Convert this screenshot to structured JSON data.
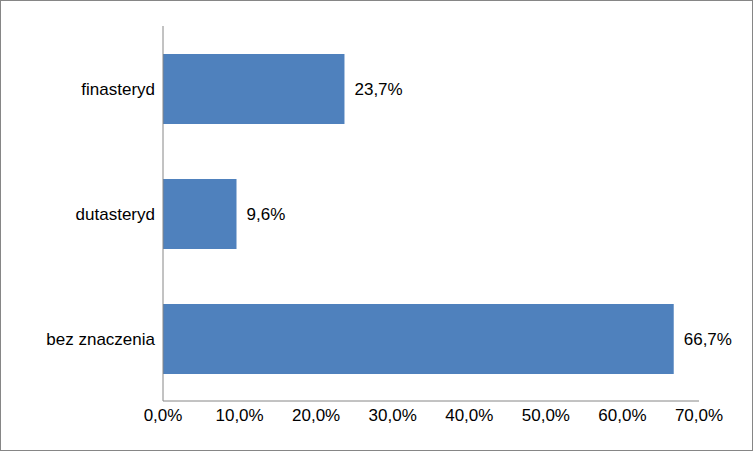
{
  "chart_data": {
    "type": "bar",
    "orientation": "horizontal",
    "categories": [
      "finasteryd",
      "dutasteryd",
      "bez znaczenia"
    ],
    "values": [
      23.7,
      9.6,
      66.7
    ],
    "value_labels": [
      "23,7%",
      "9,6%",
      "66,7%"
    ],
    "data_labels": true,
    "color": "#4f81bd",
    "xlim": [
      0,
      70
    ],
    "xticks": [
      {
        "value": 0,
        "label": "0,0%"
      },
      {
        "value": 10,
        "label": "10,0%"
      },
      {
        "value": 20,
        "label": "20,0%"
      },
      {
        "value": 30,
        "label": "30,0%"
      },
      {
        "value": 40,
        "label": "40,0%"
      },
      {
        "value": 50,
        "label": "50,0%"
      },
      {
        "value": 60,
        "label": "60,0%"
      },
      {
        "value": 70,
        "label": "70,0%"
      }
    ],
    "grid": false
  }
}
